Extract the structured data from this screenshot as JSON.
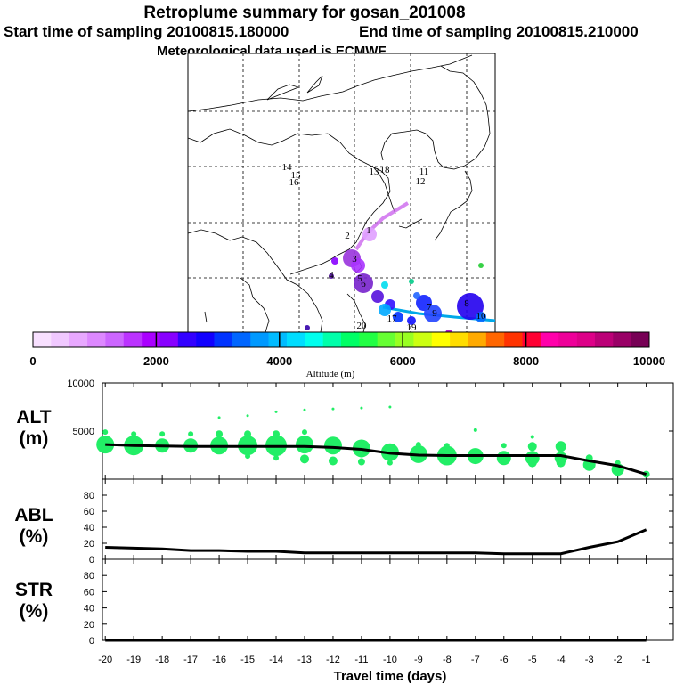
{
  "header": {
    "title": "Retroplume summary for gosan_201008",
    "start_label": "Start time of sampling 20100815.180000",
    "end_label": "End time of sampling 20100815.210000",
    "met_label": "Meteorological data used is ECMWF"
  },
  "map": {
    "day_labels": [
      "1",
      "2",
      "3",
      "4",
      "5",
      "6",
      "7",
      "8",
      "9",
      "10",
      "11",
      "12",
      "13",
      "14",
      "15",
      "16",
      "17",
      "18",
      "19",
      "20"
    ],
    "plume_color": "#cc66ee",
    "track_color": "#00a8e8"
  },
  "colorbar": {
    "colors": [
      "#f8e0ff",
      "#f0c8ff",
      "#e8a8ff",
      "#dd88ff",
      "#cc66ff",
      "#bb33ff",
      "#aa00ff",
      "#8800ff",
      "#3300ff",
      "#1100ff",
      "#0033ff",
      "#0066ff",
      "#0099ff",
      "#00bbff",
      "#00ddff",
      "#00ffee",
      "#00ffaa",
      "#00ff66",
      "#22ff44",
      "#66ff33",
      "#99ff22",
      "#ccff11",
      "#ffff00",
      "#ffdd00",
      "#ffaa00",
      "#ff6600",
      "#ff3300",
      "#ff0033",
      "#ff00aa",
      "#ee0099",
      "#dd0088",
      "#bb0077",
      "#990066",
      "#770055"
    ],
    "tick_labels": [
      "0",
      "2000",
      "4000",
      "6000",
      "8000",
      "10000"
    ],
    "axis_label": "Altitude (m)"
  },
  "panels": {
    "alt": {
      "label_line1": "ALT",
      "label_line2": "(m)"
    },
    "abl": {
      "label_line1": "ABL",
      "label_line2": "(%)"
    },
    "str": {
      "label_line1": "STR",
      "label_line2": "(%)"
    }
  },
  "chart_data": [
    {
      "type": "line",
      "title": "ALT",
      "xlabel": "Travel time (days)",
      "ylabel": "(m)",
      "xlim": [
        -20,
        -1
      ],
      "ylim": [
        0,
        10000
      ],
      "yticks": [
        5000,
        10000
      ],
      "x": [
        -20,
        -19,
        -18,
        -17,
        -16,
        -15,
        -14,
        -13,
        -12,
        -11,
        -10,
        -9,
        -8,
        -7,
        -6,
        -5,
        -4,
        -3,
        -2,
        -1
      ],
      "values": [
        3600,
        3500,
        3450,
        3400,
        3400,
        3400,
        3400,
        3400,
        3300,
        3100,
        2700,
        2500,
        2450,
        2450,
        2450,
        2450,
        2450,
        1900,
        1400,
        500
      ],
      "scatter_color": "#22ee66",
      "scatter": [
        [
          -20,
          3600,
          10
        ],
        [
          -20,
          4900,
          3
        ],
        [
          -19,
          3500,
          11
        ],
        [
          -19,
          4700,
          3
        ],
        [
          -18,
          3500,
          8
        ],
        [
          -18,
          4700,
          3
        ],
        [
          -17,
          3500,
          8
        ],
        [
          -17,
          4700,
          3
        ],
        [
          -16,
          3500,
          10
        ],
        [
          -16,
          4700,
          4
        ],
        [
          -16,
          6400,
          1.5
        ],
        [
          -15,
          3500,
          11
        ],
        [
          -15,
          4700,
          4
        ],
        [
          -15,
          2400,
          3
        ],
        [
          -15,
          6600,
          1.5
        ],
        [
          -14,
          3500,
          12
        ],
        [
          -14,
          4700,
          4
        ],
        [
          -14,
          2200,
          3
        ],
        [
          -14,
          7000,
          1.5
        ],
        [
          -13,
          3600,
          10
        ],
        [
          -13,
          2100,
          5
        ],
        [
          -13,
          4900,
          3
        ],
        [
          -13,
          7200,
          1.5
        ],
        [
          -12,
          3500,
          10
        ],
        [
          -12,
          1900,
          5
        ],
        [
          -12,
          7300,
          1.5
        ],
        [
          -11,
          3200,
          10
        ],
        [
          -11,
          1800,
          4
        ],
        [
          -11,
          7400,
          1.5
        ],
        [
          -10,
          2800,
          10
        ],
        [
          -10,
          1700,
          3
        ],
        [
          -10,
          7500,
          1.5
        ],
        [
          -9,
          2600,
          10
        ],
        [
          -9,
          3600,
          3
        ],
        [
          -8,
          2450,
          11
        ],
        [
          -8,
          3500,
          3
        ],
        [
          -7,
          2400,
          9
        ],
        [
          -7,
          5100,
          2
        ],
        [
          -6,
          2200,
          8
        ],
        [
          -6,
          3500,
          3
        ],
        [
          -5,
          2200,
          8
        ],
        [
          -5,
          3400,
          5
        ],
        [
          -5,
          1700,
          5
        ],
        [
          -5,
          4400,
          2
        ],
        [
          -4,
          2200,
          7
        ],
        [
          -4,
          3400,
          6
        ],
        [
          -4,
          1700,
          5
        ],
        [
          -3,
          1500,
          7
        ],
        [
          -3,
          2200,
          4
        ],
        [
          -2,
          1000,
          7
        ],
        [
          -2,
          1700,
          3
        ],
        [
          -1,
          500,
          4
        ]
      ]
    },
    {
      "type": "line",
      "title": "ABL",
      "ylabel": "(%)",
      "xlim": [
        -20,
        -1
      ],
      "ylim": [
        0,
        100
      ],
      "yticks": [
        0,
        20,
        40,
        60,
        80
      ],
      "x": [
        -20,
        -19,
        -18,
        -17,
        -16,
        -15,
        -14,
        -13,
        -12,
        -11,
        -10,
        -9,
        -8,
        -7,
        -6,
        -5,
        -4,
        -3,
        -2,
        -1
      ],
      "values": [
        15,
        14,
        13,
        11,
        11,
        10,
        10,
        8,
        8,
        8,
        8,
        8,
        8,
        8,
        7,
        7,
        7,
        15,
        22,
        37
      ]
    },
    {
      "type": "line",
      "title": "STR",
      "ylabel": "(%)",
      "xlim": [
        -20,
        -1
      ],
      "ylim": [
        0,
        100
      ],
      "yticks": [
        0,
        20,
        40,
        60,
        80
      ],
      "xticks": [
        "-20",
        "-19",
        "-18",
        "-17",
        "-16",
        "-15",
        "-14",
        "-13",
        "-12",
        "-11",
        "-10",
        "-9",
        "-8",
        "-7",
        "-6",
        "-5",
        "-4",
        "-3",
        "-2",
        "-1"
      ],
      "x": [
        -20,
        -19,
        -18,
        -17,
        -16,
        -15,
        -14,
        -13,
        -12,
        -11,
        -10,
        -9,
        -8,
        -7,
        -6,
        -5,
        -4,
        -3,
        -2,
        -1
      ],
      "values": [
        0,
        0,
        0,
        0,
        0,
        0,
        0,
        0,
        0,
        0,
        0,
        0,
        0,
        0,
        0,
        0,
        0,
        0,
        0,
        0
      ]
    }
  ]
}
